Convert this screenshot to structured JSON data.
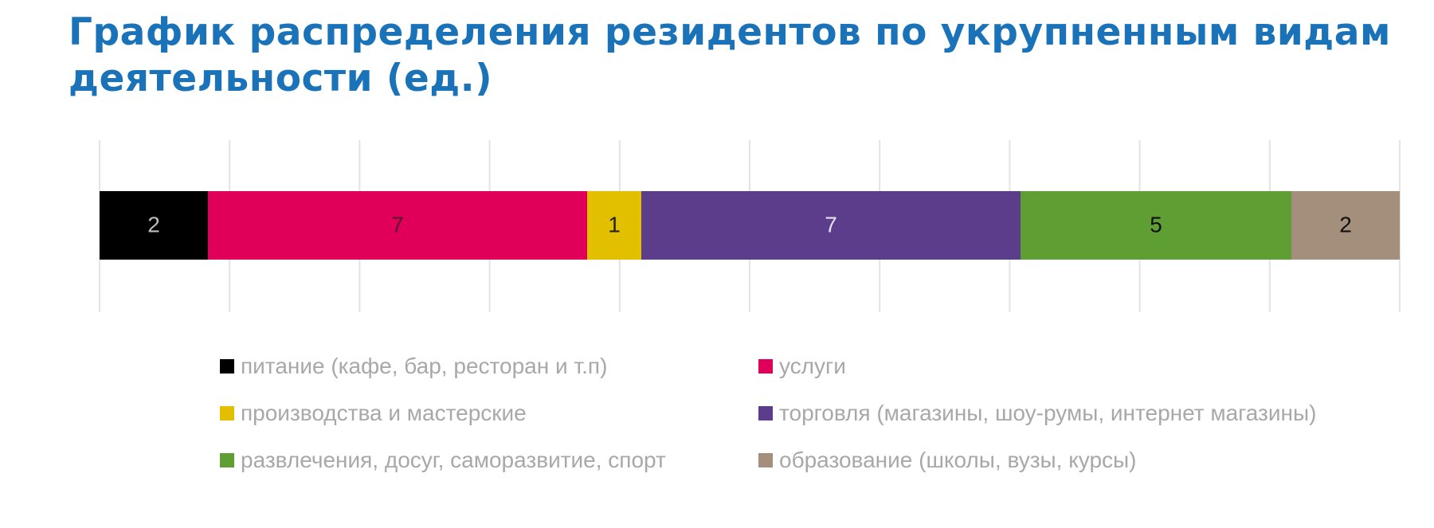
{
  "title": "График распределения резидентов по укрупненным видам деятельности (ед.)",
  "chart_data": {
    "type": "bar",
    "orientation": "horizontal",
    "stacked": true,
    "grid": true,
    "legend_position": "bottom",
    "xlim": [
      0,
      24
    ],
    "title": "График распределения резидентов по укрупненным видам деятельности (ед.)",
    "series": [
      {
        "name": "питание (кафе, бар, ресторан и т.п)",
        "value": 2,
        "label": "2",
        "color": "#000000",
        "label_color": "#bdbdbd"
      },
      {
        "name": "услуги",
        "value": 7,
        "label": "7",
        "color": "#e0005a",
        "label_color": "#5a1730"
      },
      {
        "name": "производства и мастерские",
        "value": 1,
        "label": "1",
        "color": "#e2c000",
        "label_color": "#222222"
      },
      {
        "name": "торговля (магазины, шоу-румы, интернет магазины)",
        "value": 7,
        "label": "7",
        "color": "#5b3d8c",
        "label_color": "#e6e0f0"
      },
      {
        "name": "развлечения, досуг, саморазвитие, спорт",
        "value": 5,
        "label": "5",
        "color": "#5e9e32",
        "label_color": "#111111"
      },
      {
        "name": "образование (школы, вузы, курсы)",
        "value": 2,
        "label": "2",
        "color": "#a38f7c",
        "label_color": "#111111"
      }
    ]
  }
}
